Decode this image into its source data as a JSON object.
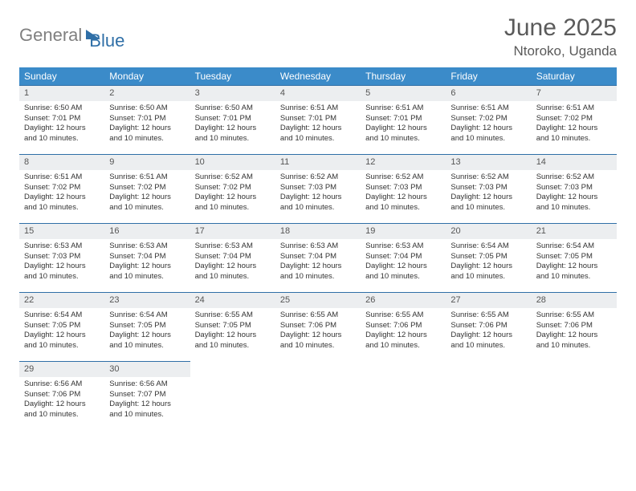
{
  "logo": {
    "part1": "General",
    "part2": "Blue"
  },
  "title": {
    "month": "June 2025",
    "location": "Ntoroko, Uganda"
  },
  "colors": {
    "header_bg": "#3b8bc9",
    "border": "#2f6fa7",
    "daynum_bg": "#eceef0",
    "text": "#333333",
    "title_text": "#5a5a5a"
  },
  "weekdays": [
    "Sunday",
    "Monday",
    "Tuesday",
    "Wednesday",
    "Thursday",
    "Friday",
    "Saturday"
  ],
  "labels": {
    "sunrise": "Sunrise:",
    "sunset": "Sunset:",
    "daylight": "Daylight:"
  },
  "weeks": [
    [
      {
        "n": "1",
        "sr": "6:50 AM",
        "ss": "7:01 PM",
        "dl": "12 hours and 10 minutes."
      },
      {
        "n": "2",
        "sr": "6:50 AM",
        "ss": "7:01 PM",
        "dl": "12 hours and 10 minutes."
      },
      {
        "n": "3",
        "sr": "6:50 AM",
        "ss": "7:01 PM",
        "dl": "12 hours and 10 minutes."
      },
      {
        "n": "4",
        "sr": "6:51 AM",
        "ss": "7:01 PM",
        "dl": "12 hours and 10 minutes."
      },
      {
        "n": "5",
        "sr": "6:51 AM",
        "ss": "7:01 PM",
        "dl": "12 hours and 10 minutes."
      },
      {
        "n": "6",
        "sr": "6:51 AM",
        "ss": "7:02 PM",
        "dl": "12 hours and 10 minutes."
      },
      {
        "n": "7",
        "sr": "6:51 AM",
        "ss": "7:02 PM",
        "dl": "12 hours and 10 minutes."
      }
    ],
    [
      {
        "n": "8",
        "sr": "6:51 AM",
        "ss": "7:02 PM",
        "dl": "12 hours and 10 minutes."
      },
      {
        "n": "9",
        "sr": "6:51 AM",
        "ss": "7:02 PM",
        "dl": "12 hours and 10 minutes."
      },
      {
        "n": "10",
        "sr": "6:52 AM",
        "ss": "7:02 PM",
        "dl": "12 hours and 10 minutes."
      },
      {
        "n": "11",
        "sr": "6:52 AM",
        "ss": "7:03 PM",
        "dl": "12 hours and 10 minutes."
      },
      {
        "n": "12",
        "sr": "6:52 AM",
        "ss": "7:03 PM",
        "dl": "12 hours and 10 minutes."
      },
      {
        "n": "13",
        "sr": "6:52 AM",
        "ss": "7:03 PM",
        "dl": "12 hours and 10 minutes."
      },
      {
        "n": "14",
        "sr": "6:52 AM",
        "ss": "7:03 PM",
        "dl": "12 hours and 10 minutes."
      }
    ],
    [
      {
        "n": "15",
        "sr": "6:53 AM",
        "ss": "7:03 PM",
        "dl": "12 hours and 10 minutes."
      },
      {
        "n": "16",
        "sr": "6:53 AM",
        "ss": "7:04 PM",
        "dl": "12 hours and 10 minutes."
      },
      {
        "n": "17",
        "sr": "6:53 AM",
        "ss": "7:04 PM",
        "dl": "12 hours and 10 minutes."
      },
      {
        "n": "18",
        "sr": "6:53 AM",
        "ss": "7:04 PM",
        "dl": "12 hours and 10 minutes."
      },
      {
        "n": "19",
        "sr": "6:53 AM",
        "ss": "7:04 PM",
        "dl": "12 hours and 10 minutes."
      },
      {
        "n": "20",
        "sr": "6:54 AM",
        "ss": "7:05 PM",
        "dl": "12 hours and 10 minutes."
      },
      {
        "n": "21",
        "sr": "6:54 AM",
        "ss": "7:05 PM",
        "dl": "12 hours and 10 minutes."
      }
    ],
    [
      {
        "n": "22",
        "sr": "6:54 AM",
        "ss": "7:05 PM",
        "dl": "12 hours and 10 minutes."
      },
      {
        "n": "23",
        "sr": "6:54 AM",
        "ss": "7:05 PM",
        "dl": "12 hours and 10 minutes."
      },
      {
        "n": "24",
        "sr": "6:55 AM",
        "ss": "7:05 PM",
        "dl": "12 hours and 10 minutes."
      },
      {
        "n": "25",
        "sr": "6:55 AM",
        "ss": "7:06 PM",
        "dl": "12 hours and 10 minutes."
      },
      {
        "n": "26",
        "sr": "6:55 AM",
        "ss": "7:06 PM",
        "dl": "12 hours and 10 minutes."
      },
      {
        "n": "27",
        "sr": "6:55 AM",
        "ss": "7:06 PM",
        "dl": "12 hours and 10 minutes."
      },
      {
        "n": "28",
        "sr": "6:55 AM",
        "ss": "7:06 PM",
        "dl": "12 hours and 10 minutes."
      }
    ],
    [
      {
        "n": "29",
        "sr": "6:56 AM",
        "ss": "7:06 PM",
        "dl": "12 hours and 10 minutes."
      },
      {
        "n": "30",
        "sr": "6:56 AM",
        "ss": "7:07 PM",
        "dl": "12 hours and 10 minutes."
      },
      null,
      null,
      null,
      null,
      null
    ]
  ]
}
